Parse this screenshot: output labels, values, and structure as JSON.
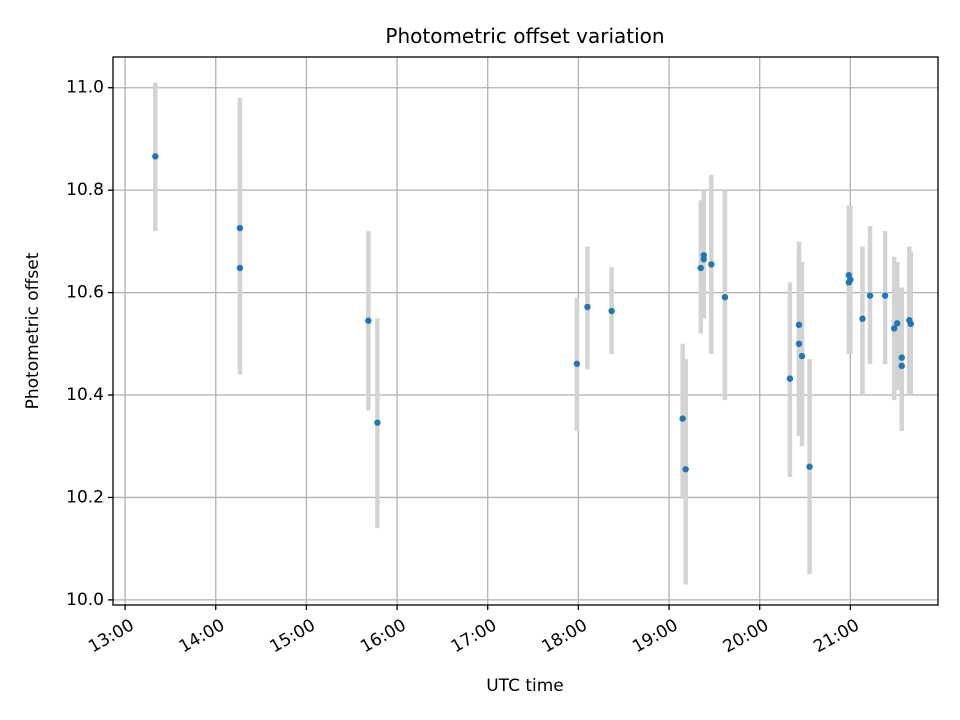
{
  "chart_data": {
    "type": "scatter",
    "title": "Photometric offset variation",
    "xlabel": "UTC time",
    "ylabel": "Photometric offset",
    "xlim": [
      "12:52",
      "21:58"
    ],
    "ylim": [
      9.99,
      11.06
    ],
    "xticks": [
      "13:00",
      "14:00",
      "15:00",
      "16:00",
      "17:00",
      "18:00",
      "19:00",
      "20:00",
      "21:00"
    ],
    "yticks": [
      "10.0",
      "10.2",
      "10.4",
      "10.6",
      "10.8",
      "11.0"
    ],
    "grid": true,
    "colors": {
      "point": "#1f77b4",
      "errorbar": "#d3d3d3"
    },
    "points": [
      {
        "x": "13:20",
        "y": 10.866,
        "lo": 10.72,
        "hi": 11.01
      },
      {
        "x": "14:16",
        "y": 10.726,
        "lo": 10.6,
        "hi": 10.86
      },
      {
        "x": "14:16",
        "y": 10.648,
        "lo": 10.44,
        "hi": 10.98
      },
      {
        "x": "15:41",
        "y": 10.545,
        "lo": 10.37,
        "hi": 10.72
      },
      {
        "x": "15:47",
        "y": 10.346,
        "lo": 10.14,
        "hi": 10.55
      },
      {
        "x": "17:59",
        "y": 10.461,
        "lo": 10.33,
        "hi": 10.59
      },
      {
        "x": "18:06",
        "y": 10.572,
        "lo": 10.45,
        "hi": 10.69
      },
      {
        "x": "18:22",
        "y": 10.564,
        "lo": 10.48,
        "hi": 10.65
      },
      {
        "x": "19:09",
        "y": 10.354,
        "lo": 10.2,
        "hi": 10.5
      },
      {
        "x": "19:11",
        "y": 10.255,
        "lo": 10.03,
        "hi": 10.47
      },
      {
        "x": "19:21",
        "y": 10.648,
        "lo": 10.52,
        "hi": 10.78
      },
      {
        "x": "19:23",
        "y": 10.673,
        "lo": 10.55,
        "hi": 10.8
      },
      {
        "x": "19:23",
        "y": 10.665,
        "lo": 10.55,
        "hi": 10.79
      },
      {
        "x": "19:28",
        "y": 10.655,
        "lo": 10.48,
        "hi": 10.83
      },
      {
        "x": "19:37",
        "y": 10.591,
        "lo": 10.39,
        "hi": 10.8
      },
      {
        "x": "20:20",
        "y": 10.432,
        "lo": 10.24,
        "hi": 10.62
      },
      {
        "x": "20:26",
        "y": 10.537,
        "lo": 10.38,
        "hi": 10.7
      },
      {
        "x": "20:26",
        "y": 10.5,
        "lo": 10.32,
        "hi": 10.68
      },
      {
        "x": "20:28",
        "y": 10.476,
        "lo": 10.3,
        "hi": 10.66
      },
      {
        "x": "20:33",
        "y": 10.26,
        "lo": 10.05,
        "hi": 10.47
      },
      {
        "x": "20:59",
        "y": 10.62,
        "lo": 10.48,
        "hi": 10.76
      },
      {
        "x": "20:59",
        "y": 10.634,
        "lo": 10.5,
        "hi": 10.77
      },
      {
        "x": "21:00",
        "y": 10.625,
        "lo": 10.48,
        "hi": 10.77
      },
      {
        "x": "21:08",
        "y": 10.549,
        "lo": 10.4,
        "hi": 10.69
      },
      {
        "x": "21:13",
        "y": 10.594,
        "lo": 10.46,
        "hi": 10.73
      },
      {
        "x": "21:23",
        "y": 10.594,
        "lo": 10.46,
        "hi": 10.72
      },
      {
        "x": "21:29",
        "y": 10.53,
        "lo": 10.39,
        "hi": 10.67
      },
      {
        "x": "21:31",
        "y": 10.54,
        "lo": 10.41,
        "hi": 10.66
      },
      {
        "x": "21:34",
        "y": 10.473,
        "lo": 10.34,
        "hi": 10.61
      },
      {
        "x": "21:34",
        "y": 10.457,
        "lo": 10.33,
        "hi": 10.59
      },
      {
        "x": "21:39",
        "y": 10.546,
        "lo": 10.4,
        "hi": 10.69
      },
      {
        "x": "21:40",
        "y": 10.539,
        "lo": 10.4,
        "hi": 10.68
      }
    ]
  }
}
